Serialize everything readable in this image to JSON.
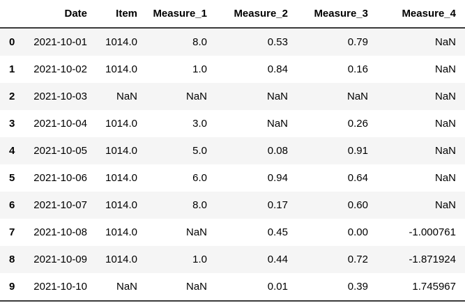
{
  "table": {
    "index_header": "",
    "columns": [
      "Date",
      "Item",
      "Measure_1",
      "Measure_2",
      "Measure_3",
      "Measure_4"
    ],
    "rows": [
      {
        "index": "0",
        "cells": [
          "2021-10-01",
          "1014.0",
          "8.0",
          "0.53",
          "0.79",
          "NaN"
        ]
      },
      {
        "index": "1",
        "cells": [
          "2021-10-02",
          "1014.0",
          "1.0",
          "0.84",
          "0.16",
          "NaN"
        ]
      },
      {
        "index": "2",
        "cells": [
          "2021-10-03",
          "NaN",
          "NaN",
          "NaN",
          "NaN",
          "NaN"
        ]
      },
      {
        "index": "3",
        "cells": [
          "2021-10-04",
          "1014.0",
          "3.0",
          "NaN",
          "0.26",
          "NaN"
        ]
      },
      {
        "index": "4",
        "cells": [
          "2021-10-05",
          "1014.0",
          "5.0",
          "0.08",
          "0.91",
          "NaN"
        ]
      },
      {
        "index": "5",
        "cells": [
          "2021-10-06",
          "1014.0",
          "6.0",
          "0.94",
          "0.64",
          "NaN"
        ]
      },
      {
        "index": "6",
        "cells": [
          "2021-10-07",
          "1014.0",
          "8.0",
          "0.17",
          "0.60",
          "NaN"
        ]
      },
      {
        "index": "7",
        "cells": [
          "2021-10-08",
          "1014.0",
          "NaN",
          "0.45",
          "0.00",
          "-1.000761"
        ]
      },
      {
        "index": "8",
        "cells": [
          "2021-10-09",
          "1014.0",
          "1.0",
          "0.44",
          "0.72",
          "-1.871924"
        ]
      },
      {
        "index": "9",
        "cells": [
          "2021-10-10",
          "NaN",
          "NaN",
          "0.01",
          "0.39",
          "1.745967"
        ]
      }
    ],
    "colors": {
      "stripe": "#f5f5f5",
      "background": "#ffffff",
      "text": "#000000",
      "header_border": "#3a3a3a"
    }
  }
}
